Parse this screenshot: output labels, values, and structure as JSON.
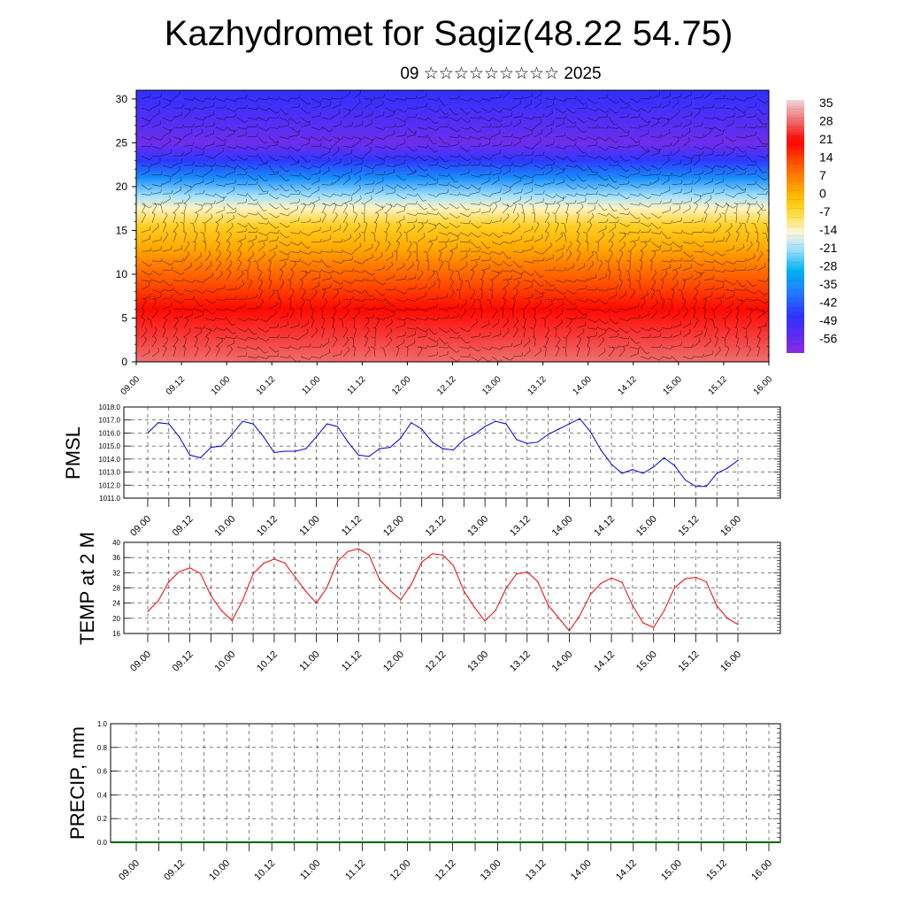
{
  "header": {
    "title": "Kazhydromet for Sagiz(48.22 54.75)",
    "subtitle": "09 ☆☆☆☆☆☆☆☆☆ 2025"
  },
  "time_ticks": [
    "09.00",
    "09.12",
    "10.00",
    "10.12",
    "11.00",
    "11.12",
    "12.00",
    "12.12",
    "13.00",
    "13.12",
    "14.00",
    "14.12",
    "15.00",
    "15.12",
    "16.00"
  ],
  "chart_data": [
    {
      "type": "heatmap",
      "name": "temperature-wind-profile",
      "x_ticks": [
        "09.00",
        "09.12",
        "10.00",
        "10.12",
        "11.00",
        "11.12",
        "12.00",
        "12.12",
        "13.00",
        "13.12",
        "14.00",
        "14.12",
        "15.00",
        "15.12",
        "16.00"
      ],
      "y_ticks": [
        0,
        5,
        10,
        15,
        20,
        25,
        30
      ],
      "ylim": [
        0,
        31
      ],
      "colorbar": {
        "labels": [
          "35",
          "28",
          "21",
          "14",
          "7",
          "0",
          "-7",
          "-14",
          "-21",
          "-28",
          "-35",
          "-42",
          "-49",
          "-56"
        ],
        "stops": [
          {
            "value": 38,
            "color": "#f4d4d4"
          },
          {
            "value": 30,
            "color": "#ee7070"
          },
          {
            "value": 22,
            "color": "#ff0000"
          },
          {
            "value": 14,
            "color": "#ff5000"
          },
          {
            "value": 7,
            "color": "#ff8c00"
          },
          {
            "value": 0,
            "color": "#ffc000"
          },
          {
            "value": -7,
            "color": "#ffe050"
          },
          {
            "value": -13,
            "color": "#fff8d8"
          },
          {
            "value": -20,
            "color": "#a0e0ff"
          },
          {
            "value": -28,
            "color": "#00b4f0"
          },
          {
            "value": -36,
            "color": "#2080ff"
          },
          {
            "value": -46,
            "color": "#3030ff"
          },
          {
            "value": -60,
            "color": "#8a2be2"
          }
        ]
      },
      "profile": [
        {
          "height": 0,
          "value": 30
        },
        {
          "height": 3,
          "value": 26
        },
        {
          "height": 6,
          "value": 21
        },
        {
          "height": 9,
          "value": 14
        },
        {
          "height": 11,
          "value": 9
        },
        {
          "height": 13,
          "value": 3
        },
        {
          "height": 15.5,
          "value": -3
        },
        {
          "height": 17.5,
          "value": -12
        },
        {
          "height": 19,
          "value": -20
        },
        {
          "height": 21,
          "value": -34
        },
        {
          "height": 23,
          "value": -45
        },
        {
          "height": 25,
          "value": -56
        },
        {
          "height": 27,
          "value": -52
        },
        {
          "height": 31,
          "value": -46
        }
      ]
    },
    {
      "type": "line",
      "name": "pmsl",
      "ylabel": "PMSL",
      "x_ticks": [
        "09.00",
        "09.12",
        "10.00",
        "10.12",
        "11.00",
        "11.12",
        "12.00",
        "12.12",
        "13.00",
        "13.12",
        "14.00",
        "14.12",
        "15.00",
        "15.12",
        "16.00"
      ],
      "y_ticks": [
        "1011.0",
        "1012.0",
        "1013.0",
        "1014.0",
        "1015.0",
        "1016.0",
        "1017.0",
        "1018.0"
      ],
      "ylim": [
        1011,
        1018
      ],
      "line_color": "#0000cc",
      "x": [
        0,
        3,
        6,
        9,
        12,
        15,
        18,
        21,
        24,
        27,
        30,
        33,
        36,
        39,
        42,
        45,
        48,
        51,
        54,
        57,
        60,
        63,
        66,
        69,
        72,
        75,
        78,
        81,
        84,
        87,
        90,
        93,
        96,
        99,
        102,
        105,
        108,
        111,
        114,
        117,
        120,
        123,
        126,
        129,
        132,
        135,
        138,
        141,
        144,
        147,
        150,
        153,
        156,
        159,
        162,
        165,
        168
      ],
      "values": [
        1016.0,
        1016.8,
        1016.7,
        1015.7,
        1014.3,
        1014.1,
        1014.9,
        1015.0,
        1015.9,
        1016.9,
        1016.7,
        1015.7,
        1014.5,
        1014.6,
        1014.6,
        1014.8,
        1015.7,
        1016.7,
        1016.5,
        1015.3,
        1014.3,
        1014.2,
        1014.8,
        1014.9,
        1015.6,
        1016.8,
        1016.3,
        1015.3,
        1014.8,
        1014.7,
        1015.5,
        1015.9,
        1016.5,
        1016.9,
        1016.7,
        1015.5,
        1015.2,
        1015.3,
        1015.9,
        1016.3,
        1016.7,
        1017.1,
        1016.1,
        1014.7,
        1013.6,
        1012.9,
        1013.2,
        1012.9,
        1013.4,
        1014.1,
        1013.5,
        1012.4,
        1011.9,
        1011.9,
        1012.9,
        1013.3,
        1013.9
      ]
    },
    {
      "type": "line",
      "name": "temp-2m",
      "ylabel": "TEMP at 2 M",
      "x_ticks": [
        "09.00",
        "09.12",
        "10.00",
        "10.12",
        "11.00",
        "11.12",
        "12.00",
        "12.12",
        "13.00",
        "13.12",
        "14.00",
        "14.12",
        "15.00",
        "15.12",
        "16.00"
      ],
      "y_ticks": [
        "16",
        "20",
        "24",
        "28",
        "32",
        "36",
        "40"
      ],
      "ylim": [
        16,
        40
      ],
      "line_color": "#ee0000",
      "x": [
        0,
        3,
        6,
        9,
        12,
        15,
        18,
        21,
        24,
        27,
        30,
        33,
        36,
        39,
        42,
        45,
        48,
        51,
        54,
        57,
        60,
        63,
        66,
        69,
        72,
        75,
        78,
        81,
        84,
        87,
        90,
        93,
        96,
        99,
        102,
        105,
        108,
        111,
        114,
        117,
        120,
        123,
        126,
        129,
        132,
        135,
        138,
        141,
        144,
        147,
        150,
        153,
        156,
        159,
        162,
        165,
        168
      ],
      "values": [
        21.8,
        24.6,
        29.6,
        32.3,
        33.3,
        31.8,
        25.9,
        22.0,
        19.4,
        24.7,
        31.7,
        34.5,
        35.6,
        34.6,
        30.8,
        27.1,
        24.0,
        28.1,
        35.0,
        37.6,
        38.3,
        36.7,
        30.2,
        27.3,
        24.9,
        28.9,
        34.8,
        37.0,
        36.7,
        33.9,
        27.2,
        22.9,
        19.3,
        22.1,
        27.9,
        31.7,
        32.2,
        29.7,
        23.4,
        20.1,
        16.7,
        20.7,
        26.3,
        29.2,
        30.6,
        29.5,
        23.4,
        18.8,
        17.6,
        22.0,
        28.1,
        30.4,
        30.8,
        29.6,
        23.3,
        20.0,
        18.4
      ]
    },
    {
      "type": "bar",
      "name": "precip",
      "ylabel": "PRECIP, mm",
      "x_ticks": [
        "09.00",
        "09.12",
        "10.00",
        "10.12",
        "11.00",
        "11.12",
        "12.00",
        "12.12",
        "13.00",
        "13.12",
        "14.00",
        "14.12",
        "15.00",
        "15.12",
        "16.00"
      ],
      "y_ticks": [
        "0.0",
        "0.2",
        "0.4",
        "0.6",
        "0.8",
        "1.0"
      ],
      "ylim": [
        0,
        1
      ],
      "bar_color": "#006400",
      "values": [
        0,
        0,
        0,
        0,
        0,
        0,
        0,
        0,
        0,
        0,
        0,
        0,
        0,
        0,
        0,
        0,
        0,
        0,
        0,
        0,
        0,
        0,
        0,
        0,
        0,
        0,
        0,
        0,
        0,
        0,
        0,
        0,
        0,
        0,
        0,
        0,
        0,
        0,
        0,
        0,
        0,
        0,
        0,
        0,
        0,
        0,
        0,
        0,
        0,
        0,
        0,
        0,
        0,
        0,
        0,
        0,
        0
      ]
    }
  ]
}
